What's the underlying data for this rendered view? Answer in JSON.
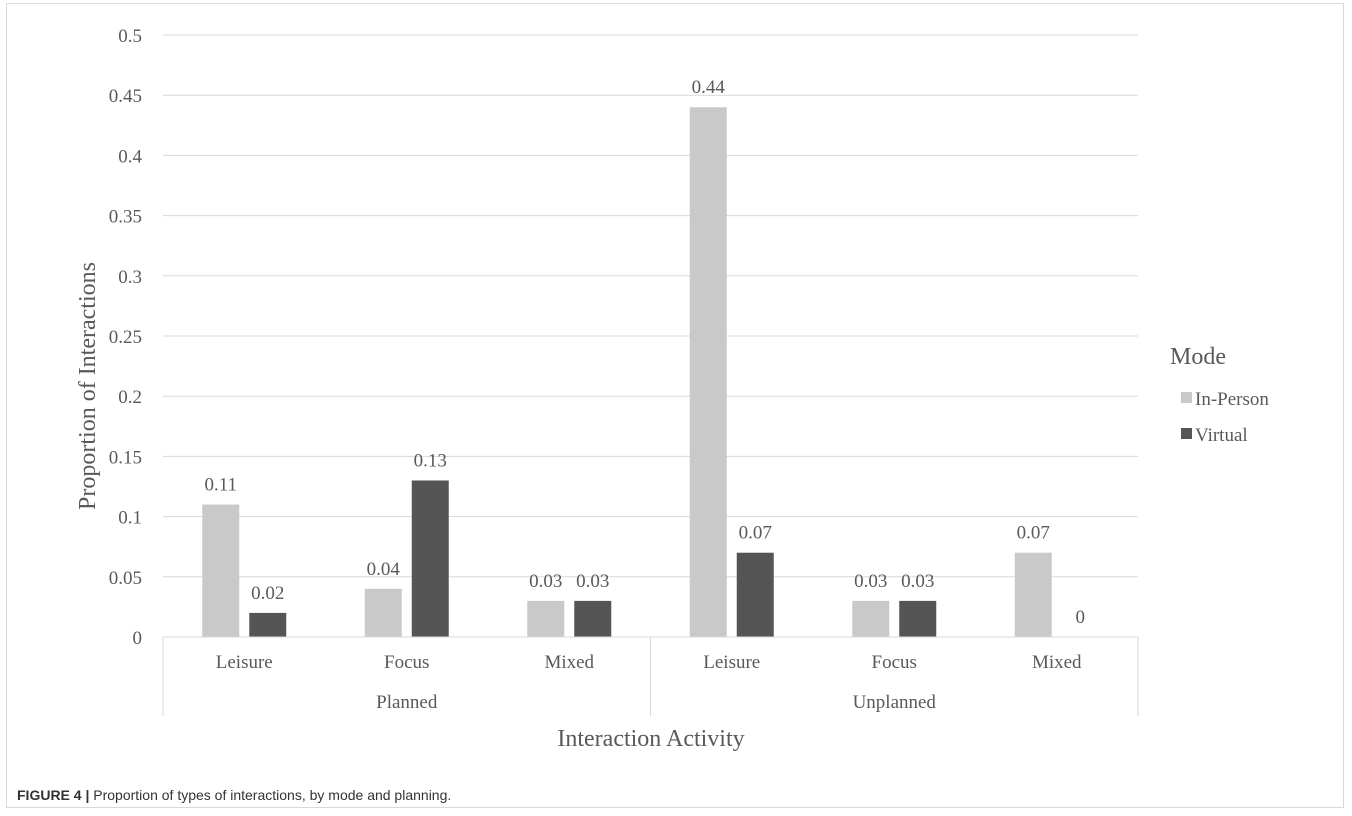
{
  "chart_data": {
    "type": "bar",
    "groups": [
      {
        "label": "Planned",
        "categories": [
          "Leisure",
          "Focus",
          "Mixed"
        ]
      },
      {
        "label": "Unplanned",
        "categories": [
          "Leisure",
          "Focus",
          "Mixed"
        ]
      }
    ],
    "series": [
      {
        "name": "In-Person",
        "color": "#c9c9c9",
        "values": [
          0.11,
          0.04,
          0.03,
          0.44,
          0.03,
          0.07
        ]
      },
      {
        "name": "Virtual",
        "color": "#555555",
        "values": [
          0.02,
          0.13,
          0.03,
          0.07,
          0.03,
          0
        ]
      }
    ],
    "xlabel": "Interaction Activity",
    "ylabel": "Proportion of Interactions",
    "ylim": [
      0,
      0.5
    ],
    "yticks": [
      0,
      0.05,
      0.1,
      0.15,
      0.2,
      0.25,
      0.3,
      0.35,
      0.4,
      0.45,
      0.5
    ],
    "ytick_labels": [
      "0",
      "0.05",
      "0.1",
      "0.15",
      "0.2",
      "0.25",
      "0.3",
      "0.35",
      "0.4",
      "0.45",
      "0.5"
    ],
    "grid": true,
    "legend_title": "Mode",
    "legend_position": "right"
  },
  "caption": {
    "lead": "FIGURE 4 |",
    "text": " Proportion of types of interactions, by mode and planning."
  }
}
